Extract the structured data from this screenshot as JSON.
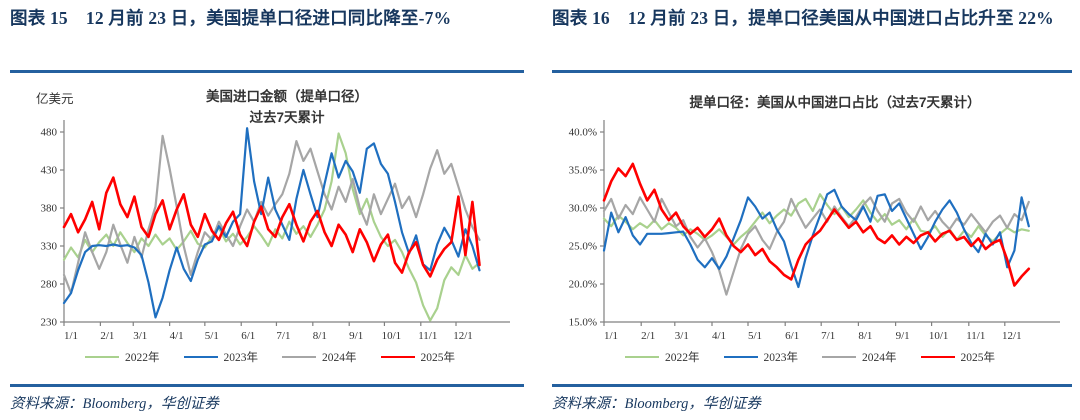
{
  "colors": {
    "title_navy": "#17375E",
    "rule_blue": "#24609F",
    "axis_line": "#808080",
    "tick_text": "#333333",
    "series_2022": "#A9D18E",
    "series_2023": "#1F6FC0",
    "series_2024": "#A6A6A6",
    "series_2025": "#FF0000"
  },
  "panels": [
    {
      "figure_label": "图表 15",
      "figure_title": "12 月前 23 日，美国提单口径进口同比降至-7%",
      "source": "资料来源：Bloomberg，华创证券"
    },
    {
      "figure_label": "图表 16",
      "figure_title": "12 月前 23 日，提单口径美国从中国进口占比升至 22%",
      "source": "资料来源：Bloomberg，华创证券"
    }
  ],
  "chart_data": [
    {
      "type": "line",
      "title": "美国进口金额（提单口径）",
      "subtitle": "过去7天累计",
      "ylabel": "亿美元",
      "ylim": [
        230,
        480
      ],
      "yticks": [
        230,
        280,
        330,
        380,
        430,
        480
      ],
      "ytick_labels": [
        "230",
        "280",
        "330",
        "380",
        "430",
        "480"
      ],
      "xlim": [
        0,
        380
      ],
      "xticks": [
        0,
        31,
        59,
        90,
        120,
        151,
        181,
        212,
        243,
        273,
        304,
        334
      ],
      "xtick_labels": [
        "1/1",
        "2/1",
        "3/1",
        "4/1",
        "5/1",
        "6/1",
        "7/1",
        "8/1",
        "9/1",
        "10/1",
        "11/1",
        "12/1"
      ],
      "grid": false,
      "legend_position": "bottom",
      "x_step": 6,
      "draw_order": [
        0,
        2,
        1,
        3
      ],
      "series": [
        {
          "name": "2022年",
          "color": "#A9D18E",
          "width": 2.2,
          "values": [
            312,
            328,
            315,
            338,
            322,
            335,
            345,
            330,
            348,
            334,
            322,
            340,
            330,
            345,
            332,
            340,
            325,
            336,
            350,
            333,
            328,
            342,
            354,
            336,
            346,
            332,
            342,
            356,
            344,
            330,
            352,
            340,
            362,
            346,
            356,
            342,
            358,
            378,
            415,
            478,
            452,
            405,
            372,
            392,
            362,
            342,
            330,
            338,
            322,
            300,
            282,
            252,
            232,
            248,
            285,
            302,
            292,
            318,
            300,
            308
          ]
        },
        {
          "name": "2023年",
          "color": "#1F6FC0",
          "width": 2.2,
          "values": [
            255,
            268,
            298,
            322,
            330,
            331,
            330,
            332,
            330,
            331,
            328,
            318,
            282,
            236,
            262,
            298,
            328,
            300,
            284,
            312,
            332,
            336,
            356,
            342,
            362,
            372,
            485,
            415,
            372,
            420,
            378,
            358,
            338,
            392,
            430,
            398,
            368,
            412,
            452,
            420,
            442,
            428,
            400,
            458,
            465,
            438,
            425,
            388,
            348,
            320,
            344,
            306,
            298,
            332,
            354,
            338,
            316,
            352,
            330,
            298
          ]
        },
        {
          "name": "2024年",
          "color": "#A6A6A6",
          "width": 2.2,
          "values": [
            292,
            268,
            308,
            348,
            322,
            300,
            322,
            358,
            332,
            308,
            342,
            315,
            352,
            382,
            475,
            432,
            382,
            330,
            292,
            322,
            348,
            338,
            362,
            345,
            330,
            356,
            378,
            362,
            388,
            370,
            385,
            398,
            425,
            468,
            442,
            458,
            428,
            398,
            378,
            408,
            388,
            418,
            380,
            358,
            398,
            372,
            392,
            412,
            380,
            395,
            368,
            398,
            432,
            456,
            425,
            438,
            408,
            378,
            355,
            338
          ]
        },
        {
          "name": "2025年",
          "color": "#FF0000",
          "width": 2.6,
          "values": [
            355,
            372,
            348,
            365,
            388,
            352,
            400,
            420,
            385,
            368,
            395,
            355,
            342,
            372,
            390,
            352,
            378,
            398,
            358,
            342,
            372,
            350,
            338,
            360,
            375,
            345,
            330,
            362,
            382,
            352,
            342,
            368,
            385,
            358,
            336,
            362,
            376,
            348,
            330,
            358,
            345,
            322,
            352,
            335,
            310,
            332,
            345,
            308,
            295,
            322,
            335,
            305,
            290,
            312,
            326,
            335,
            395,
            318,
            388,
            305
          ]
        }
      ]
    },
    {
      "type": "line",
      "title": "提单口径：美国从中国进口占比（过去7天累计）",
      "subtitle": "",
      "ylabel": "",
      "ylim": [
        15,
        40
      ],
      "yticks": [
        15,
        20,
        25,
        30,
        35,
        40
      ],
      "ytick_labels": [
        "15.0%",
        "20.0%",
        "25.0%",
        "30.0%",
        "35.0%",
        "40.0%"
      ],
      "xlim": [
        0,
        380
      ],
      "xticks": [
        0,
        31,
        59,
        90,
        120,
        151,
        181,
        212,
        243,
        273,
        304,
        334
      ],
      "xtick_labels": [
        "1/1",
        "2/1",
        "3/1",
        "4/1",
        "5/1",
        "6/1",
        "7/1",
        "8/1",
        "9/1",
        "10/1",
        "11/1",
        "12/1"
      ],
      "grid": false,
      "legend_position": "bottom",
      "x_step": 6,
      "draw_order": [
        0,
        2,
        1,
        3
      ],
      "series": [
        {
          "name": "2022年",
          "color": "#A9D18E",
          "width": 2.2,
          "values": [
            28.6,
            27.6,
            29.0,
            28.2,
            27.2,
            28.0,
            27.4,
            28.4,
            27.2,
            28.0,
            27.4,
            26.4,
            27.2,
            26.6,
            25.8,
            26.4,
            27.2,
            26.2,
            25.2,
            26.2,
            27.0,
            28.2,
            29.4,
            28.0,
            29.0,
            29.8,
            29.0,
            30.6,
            31.2,
            29.6,
            31.8,
            30.4,
            29.2,
            30.2,
            28.8,
            29.8,
            31.0,
            29.4,
            28.2,
            29.2,
            27.8,
            28.4,
            27.2,
            28.6,
            27.0,
            26.8,
            27.6,
            26.2,
            27.2,
            25.8,
            27.0,
            26.2,
            27.6,
            26.4,
            25.6,
            26.6,
            27.4,
            26.8,
            27.2,
            27.0
          ]
        },
        {
          "name": "2023年",
          "color": "#1F6FC0",
          "width": 2.2,
          "values": [
            24.4,
            29.4,
            26.8,
            28.8,
            26.4,
            25.2,
            26.6,
            26.6,
            26.6,
            26.7,
            26.8,
            26.9,
            25.2,
            23.2,
            22.2,
            23.4,
            22.0,
            23.6,
            26.0,
            28.4,
            31.4,
            30.2,
            28.6,
            29.4,
            27.2,
            25.6,
            22.4,
            19.6,
            23.4,
            26.4,
            29.0,
            31.8,
            32.4,
            30.2,
            29.2,
            28.4,
            30.2,
            28.2,
            31.6,
            31.8,
            29.6,
            30.6,
            28.6,
            26.6,
            24.6,
            26.2,
            28.2,
            29.8,
            31.0,
            29.4,
            27.2,
            25.4,
            24.2,
            26.6,
            25.2,
            26.8,
            22.2,
            24.4,
            31.4,
            27.6
          ]
        },
        {
          "name": "2024年",
          "color": "#A6A6A6",
          "width": 2.2,
          "values": [
            29.6,
            31.2,
            28.6,
            30.4,
            29.2,
            31.4,
            29.8,
            28.2,
            31.2,
            29.4,
            27.6,
            28.4,
            26.2,
            24.8,
            26.0,
            24.2,
            21.8,
            18.6,
            21.6,
            24.6,
            26.6,
            27.6,
            25.8,
            24.6,
            26.8,
            28.2,
            31.2,
            29.2,
            27.4,
            28.6,
            29.8,
            28.2,
            30.2,
            28.8,
            27.6,
            28.8,
            30.4,
            31.4,
            29.6,
            28.2,
            30.6,
            31.2,
            29.4,
            28.2,
            30.2,
            28.4,
            29.6,
            28.2,
            27.2,
            28.6,
            27.8,
            29.2,
            28.0,
            26.8,
            28.2,
            29.0,
            27.4,
            29.2,
            28.4,
            30.8
          ]
        },
        {
          "name": "2025年",
          "color": "#FF0000",
          "width": 2.6,
          "values": [
            31.0,
            33.5,
            35.2,
            34.2,
            35.8,
            33.2,
            31.0,
            32.4,
            29.8,
            28.4,
            29.4,
            27.6,
            26.6,
            27.4,
            26.2,
            27.2,
            28.6,
            26.4,
            25.0,
            24.2,
            25.2,
            23.8,
            24.6,
            23.0,
            22.2,
            21.2,
            20.6,
            23.2,
            25.2,
            26.2,
            27.0,
            28.4,
            29.8,
            28.6,
            27.4,
            28.2,
            26.8,
            27.6,
            26.0,
            25.4,
            26.4,
            25.2,
            26.2,
            25.4,
            26.4,
            26.8,
            25.6,
            26.6,
            27.0,
            25.8,
            26.2,
            25.0,
            26.0,
            24.6,
            25.4,
            25.8,
            23.2,
            19.8,
            21.0,
            22.0
          ]
        }
      ]
    }
  ]
}
